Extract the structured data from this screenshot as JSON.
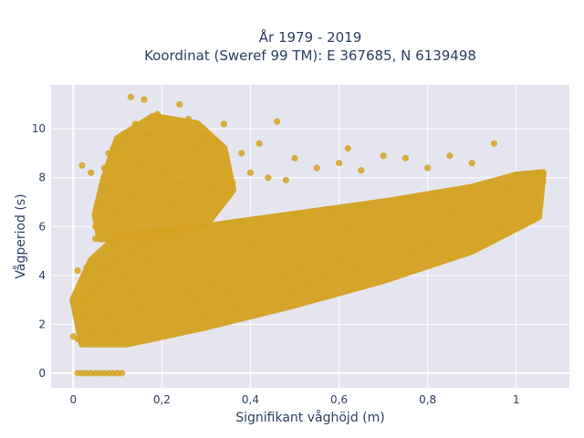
{
  "chart_data": {
    "type": "scatter",
    "title_line1": "År 1979 - 2019",
    "title_line2": "Koordinat (Sweref 99 TM): E 367685, N 6139498",
    "xlabel": "Signifikant våghöjd (m)",
    "ylabel": "Vågperiod (s)",
    "xlim": [
      -0.05,
      1.12
    ],
    "ylim": [
      -0.6,
      11.8
    ],
    "x_ticks": [
      0,
      0.2,
      0.4,
      0.6,
      0.8,
      1
    ],
    "x_tick_labels": [
      "0",
      "0,2",
      "0,4",
      "0,6",
      "0,8",
      "1"
    ],
    "y_ticks": [
      0,
      2,
      4,
      6,
      8,
      10
    ],
    "y_tick_labels": [
      "0",
      "2",
      "4",
      "6",
      "8",
      "10"
    ],
    "grid": true,
    "legend": "none",
    "marker_color": "#d4a21f",
    "plot_bg": "#e5e5ef",
    "series": [
      {
        "points": [
          [
            0.0,
            1.5
          ],
          [
            0.01,
            1.4
          ],
          [
            0.02,
            1.8
          ],
          [
            0.02,
            2.2
          ],
          [
            0.03,
            2.5
          ],
          [
            0.03,
            3.0
          ],
          [
            0.04,
            3.3
          ],
          [
            0.04,
            1.6
          ],
          [
            0.05,
            1.8
          ],
          [
            0.05,
            2.6
          ],
          [
            0.06,
            3.6
          ],
          [
            0.06,
            4.2
          ],
          [
            0.07,
            2.0
          ],
          [
            0.07,
            3.8
          ],
          [
            0.08,
            4.4
          ],
          [
            0.08,
            2.4
          ],
          [
            0.09,
            1.6
          ],
          [
            0.09,
            3.2
          ],
          [
            0.1,
            4.6
          ],
          [
            0.1,
            2.8
          ],
          [
            0.11,
            1.8
          ],
          [
            0.11,
            4.0
          ],
          [
            0.12,
            4.8
          ],
          [
            0.12,
            2.2
          ],
          [
            0.13,
            3.4
          ],
          [
            0.13,
            5.0
          ],
          [
            0.14,
            1.7
          ],
          [
            0.14,
            4.2
          ],
          [
            0.15,
            2.6
          ],
          [
            0.15,
            5.2
          ],
          [
            0.16,
            3.6
          ],
          [
            0.16,
            1.9
          ],
          [
            0.17,
            4.6
          ],
          [
            0.17,
            5.3
          ],
          [
            0.18,
            2.3
          ],
          [
            0.18,
            3.9
          ],
          [
            0.19,
            5.4
          ],
          [
            0.19,
            1.8
          ],
          [
            0.2,
            4.2
          ],
          [
            0.2,
            2.8
          ],
          [
            0.21,
            5.5
          ],
          [
            0.21,
            3.4
          ],
          [
            0.22,
            1.9
          ],
          [
            0.22,
            4.8
          ],
          [
            0.23,
            5.6
          ],
          [
            0.23,
            2.6
          ],
          [
            0.24,
            3.8
          ],
          [
            0.24,
            5.7
          ],
          [
            0.25,
            2.2
          ],
          [
            0.25,
            4.4
          ],
          [
            0.26,
            5.8
          ],
          [
            0.26,
            3.2
          ],
          [
            0.27,
            2.0
          ],
          [
            0.27,
            5.2
          ],
          [
            0.28,
            3.0
          ],
          [
            0.28,
            5.9
          ],
          [
            0.29,
            4.0
          ],
          [
            0.3,
            2.4
          ],
          [
            0.3,
            6.0
          ],
          [
            0.31,
            3.6
          ],
          [
            0.32,
            5.0
          ],
          [
            0.33,
            2.8
          ],
          [
            0.34,
            6.1
          ],
          [
            0.35,
            3.2
          ],
          [
            0.36,
            4.6
          ],
          [
            0.37,
            2.6
          ],
          [
            0.38,
            6.2
          ],
          [
            0.39,
            3.4
          ],
          [
            0.4,
            5.2
          ],
          [
            0.41,
            3.0
          ],
          [
            0.42,
            6.3
          ],
          [
            0.43,
            3.8
          ],
          [
            0.44,
            4.8
          ],
          [
            0.45,
            3.2
          ],
          [
            0.46,
            6.4
          ],
          [
            0.47,
            4.0
          ],
          [
            0.48,
            5.4
          ],
          [
            0.49,
            3.4
          ],
          [
            0.5,
            6.5
          ],
          [
            0.51,
            4.2
          ],
          [
            0.52,
            5.6
          ],
          [
            0.53,
            3.6
          ],
          [
            0.54,
            6.6
          ],
          [
            0.55,
            4.4
          ],
          [
            0.56,
            5.8
          ],
          [
            0.57,
            4.0
          ],
          [
            0.58,
            6.7
          ],
          [
            0.6,
            4.6
          ],
          [
            0.62,
            6.0
          ],
          [
            0.64,
            4.4
          ],
          [
            0.66,
            6.9
          ],
          [
            0.68,
            4.8
          ],
          [
            0.7,
            6.2
          ],
          [
            0.72,
            4.8
          ],
          [
            0.74,
            7.1
          ],
          [
            0.76,
            5.0
          ],
          [
            0.78,
            6.4
          ],
          [
            0.8,
            5.2
          ],
          [
            0.82,
            7.3
          ],
          [
            0.84,
            5.4
          ],
          [
            0.86,
            6.6
          ],
          [
            0.88,
            5.6
          ],
          [
            0.9,
            7.5
          ],
          [
            0.92,
            5.8
          ],
          [
            0.94,
            6.8
          ],
          [
            0.96,
            6.0
          ],
          [
            0.98,
            7.6
          ],
          [
            1.0,
            6.4
          ],
          [
            1.02,
            7.8
          ],
          [
            1.04,
            7.4
          ],
          [
            1.05,
            8.2
          ],
          [
            1.06,
            7.8
          ],
          [
            0.05,
            6.0
          ],
          [
            0.06,
            7.0
          ],
          [
            0.07,
            8.4
          ],
          [
            0.08,
            7.6
          ],
          [
            0.09,
            9.2
          ],
          [
            0.1,
            6.6
          ],
          [
            0.11,
            8.0
          ],
          [
            0.12,
            9.6
          ],
          [
            0.13,
            7.2
          ],
          [
            0.14,
            10.2
          ],
          [
            0.15,
            8.6
          ],
          [
            0.16,
            6.8
          ],
          [
            0.17,
            9.8
          ],
          [
            0.18,
            7.4
          ],
          [
            0.19,
            10.6
          ],
          [
            0.2,
            8.2
          ],
          [
            0.21,
            9.4
          ],
          [
            0.22,
            6.9
          ],
          [
            0.23,
            10.0
          ],
          [
            0.24,
            7.8
          ],
          [
            0.25,
            8.8
          ],
          [
            0.26,
            10.4
          ],
          [
            0.27,
            7.2
          ],
          [
            0.28,
            9.2
          ],
          [
            0.29,
            8.0
          ],
          [
            0.3,
            9.6
          ],
          [
            0.31,
            7.6
          ],
          [
            0.32,
            8.6
          ],
          [
            0.34,
            10.2
          ],
          [
            0.36,
            7.8
          ],
          [
            0.38,
            9.0
          ],
          [
            0.4,
            8.2
          ],
          [
            0.42,
            9.4
          ],
          [
            0.44,
            8.0
          ],
          [
            0.46,
            10.3
          ],
          [
            0.48,
            7.9
          ],
          [
            0.5,
            8.8
          ],
          [
            0.55,
            8.4
          ],
          [
            0.6,
            8.6
          ],
          [
            0.62,
            9.2
          ],
          [
            0.65,
            8.3
          ],
          [
            0.7,
            8.9
          ],
          [
            0.75,
            8.8
          ],
          [
            0.8,
            8.4
          ],
          [
            0.85,
            8.9
          ],
          [
            0.9,
            8.6
          ],
          [
            0.95,
            9.4
          ],
          [
            1.0,
            8.1
          ],
          [
            0.13,
            11.3
          ],
          [
            0.16,
            11.2
          ],
          [
            0.24,
            11.0
          ],
          [
            0.08,
            9.0
          ],
          [
            0.02,
            8.5
          ],
          [
            0.04,
            8.2
          ],
          [
            0.01,
            0.0
          ],
          [
            0.02,
            0.0
          ],
          [
            0.03,
            0.0
          ],
          [
            0.04,
            0.0
          ],
          [
            0.05,
            0.0
          ],
          [
            0.06,
            0.0
          ],
          [
            0.07,
            0.0
          ],
          [
            0.08,
            0.0
          ],
          [
            0.09,
            0.0
          ],
          [
            0.1,
            0.0
          ],
          [
            0.11,
            0.0
          ],
          [
            0.0,
            2.9
          ],
          [
            0.01,
            4.2
          ],
          [
            0.03,
            4.3
          ],
          [
            0.05,
            5.5
          ],
          [
            0.09,
            5.2
          ]
        ]
      }
    ]
  }
}
